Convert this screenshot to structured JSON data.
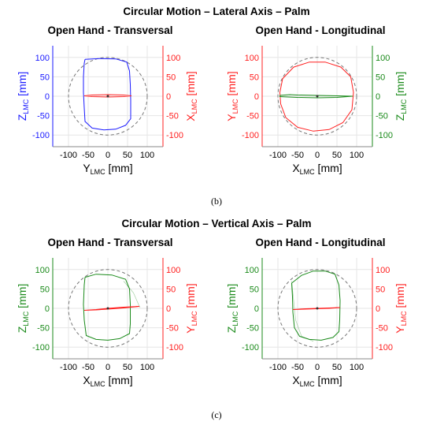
{
  "sections": [
    {
      "title": "Circular Motion – Lateral Axis – Palm",
      "caption": "(b)"
    },
    {
      "title": "Circular Motion – Vertical Axis – Palm",
      "caption": "(c)"
    }
  ],
  "colors": {
    "blue": "#1a1aff",
    "red": "#ff2020",
    "green": "#1a8a1a",
    "dashed": "#777777",
    "grid": "#e6e6e6"
  },
  "chart_data": [
    {
      "type": "line",
      "title": "Open Hand - Transversal",
      "xlabel": {
        "base": "Y",
        "sub": "LMC",
        "unit": " [mm]"
      },
      "ylabel_left": {
        "base": "Z",
        "sub": "LMC",
        "unit": " [mm]",
        "color": "#1a1aff"
      },
      "ylabel_right": {
        "base": "X",
        "sub": "LMC",
        "unit": " [mm]",
        "color": "#ff2020"
      },
      "xlim": [
        -140,
        140
      ],
      "ylim": [
        -130,
        130
      ],
      "xticks": [
        -100,
        -50,
        0,
        50,
        100
      ],
      "yticks": [
        -100,
        -50,
        0,
        50,
        100
      ],
      "grid": true,
      "reference_circle_radius": 100,
      "series": [
        {
          "axis": "left",
          "color": "#1a1aff",
          "points": [
            [
              -58,
              95
            ],
            [
              -20,
              97
            ],
            [
              20,
              96
            ],
            [
              48,
              88
            ],
            [
              55,
              65
            ],
            [
              57,
              30
            ],
            [
              58,
              -10
            ],
            [
              58,
              -58
            ],
            [
              45,
              -75
            ],
            [
              20,
              -85
            ],
            [
              -10,
              -87
            ],
            [
              -40,
              -82
            ],
            [
              -58,
              -65
            ],
            [
              -60,
              -30
            ],
            [
              -62,
              10
            ],
            [
              -62,
              50
            ],
            [
              -60,
              85
            ],
            [
              -58,
              95
            ]
          ]
        },
        {
          "axis": "right",
          "color": "#ff2020",
          "points": [
            [
              -60,
              1
            ],
            [
              -40,
              3
            ],
            [
              0,
              4
            ],
            [
              40,
              3
            ],
            [
              60,
              1
            ],
            [
              40,
              -1
            ],
            [
              0,
              -2
            ],
            [
              -40,
              -1
            ],
            [
              -60,
              1
            ]
          ]
        }
      ]
    },
    {
      "type": "line",
      "title": "Open Hand - Longitudinal",
      "xlabel": {
        "base": "X",
        "sub": "LMC",
        "unit": " [mm]"
      },
      "ylabel_left": {
        "base": "Y",
        "sub": "LMC",
        "unit": " [mm]",
        "color": "#ff2020"
      },
      "ylabel_right": {
        "base": "Z",
        "sub": "LMC",
        "unit": " [mm]",
        "color": "#1a8a1a"
      },
      "xlim": [
        -140,
        140
      ],
      "ylim": [
        -130,
        130
      ],
      "xticks": [
        -100,
        -50,
        0,
        50,
        100
      ],
      "yticks": [
        -100,
        -50,
        0,
        50,
        100
      ],
      "grid": true,
      "reference_circle_radius": 100,
      "series": [
        {
          "axis": "left",
          "color": "#ff2020",
          "points": [
            [
              -95,
              10
            ],
            [
              -88,
              45
            ],
            [
              -60,
              75
            ],
            [
              -20,
              88
            ],
            [
              20,
              88
            ],
            [
              60,
              75
            ],
            [
              85,
              50
            ],
            [
              92,
              10
            ],
            [
              88,
              -35
            ],
            [
              65,
              -68
            ],
            [
              30,
              -86
            ],
            [
              -10,
              -90
            ],
            [
              -50,
              -80
            ],
            [
              -80,
              -55
            ],
            [
              -93,
              -20
            ],
            [
              -95,
              10
            ]
          ]
        },
        {
          "axis": "right",
          "color": "#1a8a1a",
          "points": [
            [
              -95,
              2
            ],
            [
              -70,
              4
            ],
            [
              -50,
              3
            ],
            [
              0,
              2
            ],
            [
              50,
              1
            ],
            [
              90,
              0
            ],
            [
              50,
              -3
            ],
            [
              0,
              -4
            ],
            [
              -50,
              -3
            ],
            [
              -95,
              -1
            ],
            [
              -95,
              2
            ]
          ]
        }
      ]
    },
    {
      "type": "line",
      "title": "Open Hand - Transversal",
      "xlabel": {
        "base": "X",
        "sub": "LMC",
        "unit": " [mm]"
      },
      "ylabel_left": {
        "base": "Z",
        "sub": "LMC",
        "unit": " [mm]",
        "color": "#1a8a1a"
      },
      "ylabel_right": {
        "base": "Y",
        "sub": "LMC",
        "unit": " [mm]",
        "color": "#ff2020"
      },
      "xlim": [
        -140,
        140
      ],
      "ylim": [
        -130,
        130
      ],
      "xticks": [
        -100,
        -50,
        0,
        50,
        100
      ],
      "yticks": [
        -100,
        -50,
        0,
        50,
        100
      ],
      "grid": true,
      "reference_circle_radius": 100,
      "series": [
        {
          "axis": "left",
          "color": "#1a8a1a",
          "points": [
            [
              -58,
              80
            ],
            [
              -30,
              88
            ],
            [
              10,
              86
            ],
            [
              45,
              75
            ],
            [
              55,
              50
            ],
            [
              57,
              10
            ],
            [
              57,
              -40
            ],
            [
              55,
              -65
            ],
            [
              30,
              -78
            ],
            [
              0,
              -82
            ],
            [
              -30,
              -80
            ],
            [
              -55,
              -70
            ],
            [
              -60,
              -30
            ],
            [
              -62,
              10
            ],
            [
              -60,
              60
            ],
            [
              -58,
              80
            ]
          ]
        },
        {
          "axis": "left",
          "color": "#1a8a1a",
          "faint": true,
          "points": [
            [
              40,
              70
            ],
            [
              65,
              40
            ],
            [
              78,
              10
            ],
            [
              82,
              2
            ]
          ]
        },
        {
          "axis": "right",
          "color": "#ff2020",
          "points": [
            [
              -60,
              -5
            ],
            [
              -30,
              -3
            ],
            [
              0,
              0
            ],
            [
              40,
              3
            ],
            [
              80,
              5
            ],
            [
              40,
              1
            ],
            [
              0,
              -2
            ],
            [
              -30,
              -4
            ],
            [
              -60,
              -5
            ]
          ]
        }
      ]
    },
    {
      "type": "line",
      "title": "Open Hand - Longitudinal",
      "xlabel": {
        "base": "X",
        "sub": "LMC",
        "unit": " [mm]"
      },
      "ylabel_left": {
        "base": "Z",
        "sub": "LMC",
        "unit": " [mm]",
        "color": "#1a8a1a"
      },
      "ylabel_right": {
        "base": "Y",
        "sub": "LMC",
        "unit": " [mm]",
        "color": "#ff2020"
      },
      "xlim": [
        -140,
        140
      ],
      "ylim": [
        -130,
        130
      ],
      "xticks": [
        -100,
        -50,
        0,
        50,
        100
      ],
      "yticks": [
        -100,
        -50,
        0,
        50,
        100
      ],
      "grid": true,
      "reference_circle_radius": 100,
      "series": [
        {
          "axis": "left",
          "color": "#1a8a1a",
          "points": [
            [
              -65,
              65
            ],
            [
              -40,
              85
            ],
            [
              -10,
              96
            ],
            [
              20,
              96
            ],
            [
              45,
              88
            ],
            [
              55,
              60
            ],
            [
              58,
              20
            ],
            [
              57,
              -30
            ],
            [
              55,
              -60
            ],
            [
              40,
              -75
            ],
            [
              10,
              -82
            ],
            [
              -20,
              -80
            ],
            [
              -45,
              -72
            ],
            [
              -58,
              -50
            ],
            [
              -62,
              -10
            ],
            [
              -63,
              30
            ],
            [
              -65,
              65
            ]
          ]
        },
        {
          "axis": "left",
          "color": "#1a8a1a",
          "faint": true,
          "points": [
            [
              -65,
              70
            ],
            [
              -60,
              20
            ],
            [
              -55,
              -30
            ],
            [
              -40,
              -72
            ],
            [
              -10,
              -85
            ]
          ]
        },
        {
          "axis": "right",
          "color": "#ff2020",
          "points": [
            [
              -62,
              -3
            ],
            [
              -30,
              -1
            ],
            [
              0,
              0
            ],
            [
              30,
              1
            ],
            [
              58,
              2
            ],
            [
              30,
              0
            ],
            [
              0,
              -1
            ],
            [
              -30,
              -2
            ],
            [
              -62,
              -3
            ]
          ]
        }
      ]
    }
  ]
}
